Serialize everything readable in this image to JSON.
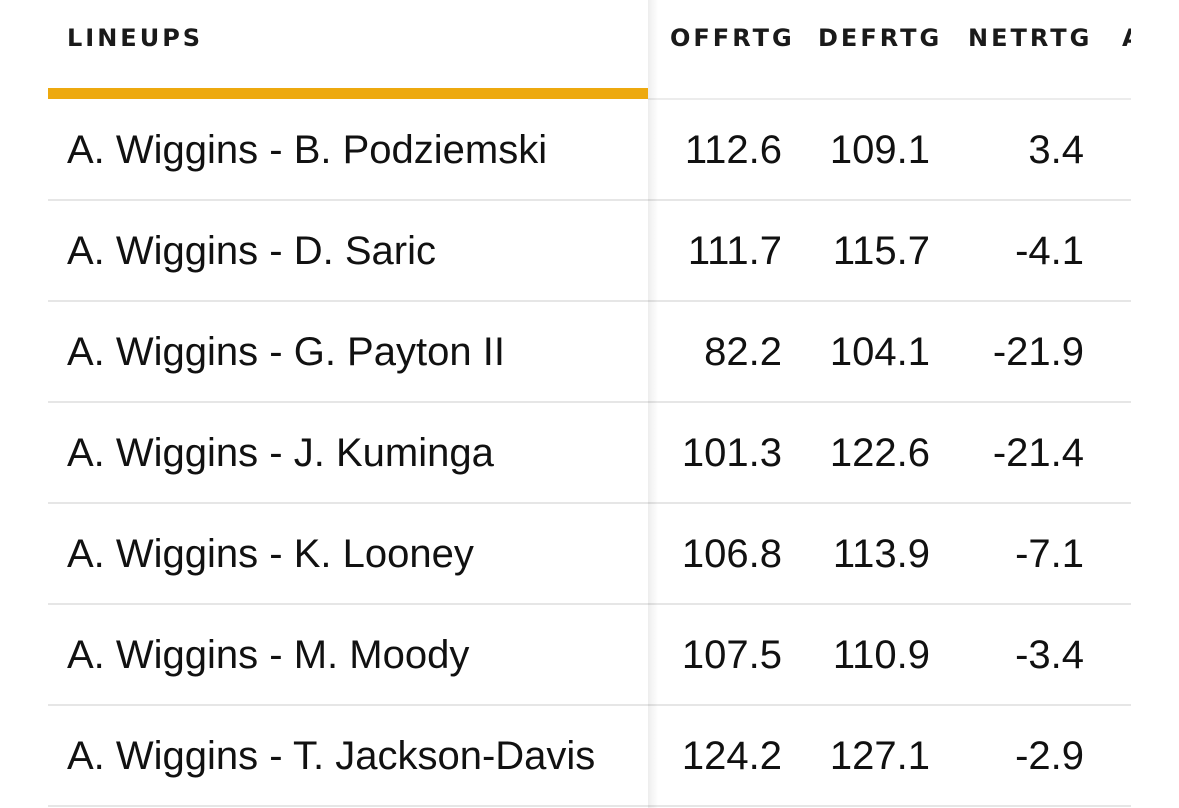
{
  "table": {
    "columns": {
      "lineups": "LINEUPS",
      "offrtg": "OFFRTG",
      "defrtg": "DEFRTG",
      "netrtg": "NETRTG",
      "cut_next": "A"
    },
    "rows": [
      {
        "lineup": "A. Wiggins - B. Podziemski",
        "offrtg": "112.6",
        "defrtg": "109.1",
        "netrtg": "3.4"
      },
      {
        "lineup": "A. Wiggins - D. Saric",
        "offrtg": "111.7",
        "defrtg": "115.7",
        "netrtg": "-4.1"
      },
      {
        "lineup": "A. Wiggins - G. Payton II",
        "offrtg": "82.2",
        "defrtg": "104.1",
        "netrtg": "-21.9"
      },
      {
        "lineup": "A. Wiggins - J. Kuminga",
        "offrtg": "101.3",
        "defrtg": "122.6",
        "netrtg": "-21.4"
      },
      {
        "lineup": "A. Wiggins - K. Looney",
        "offrtg": "106.8",
        "defrtg": "113.9",
        "netrtg": "-7.1"
      },
      {
        "lineup": "A. Wiggins - M. Moody",
        "offrtg": "107.5",
        "defrtg": "110.9",
        "netrtg": "-3.4"
      },
      {
        "lineup": "A. Wiggins - T. Jackson-Davis",
        "offrtg": "124.2",
        "defrtg": "127.1",
        "netrtg": "-2.9"
      }
    ]
  },
  "colors": {
    "accent": "#eda90f",
    "text": "#111111",
    "divider": "#e6e6e6"
  }
}
